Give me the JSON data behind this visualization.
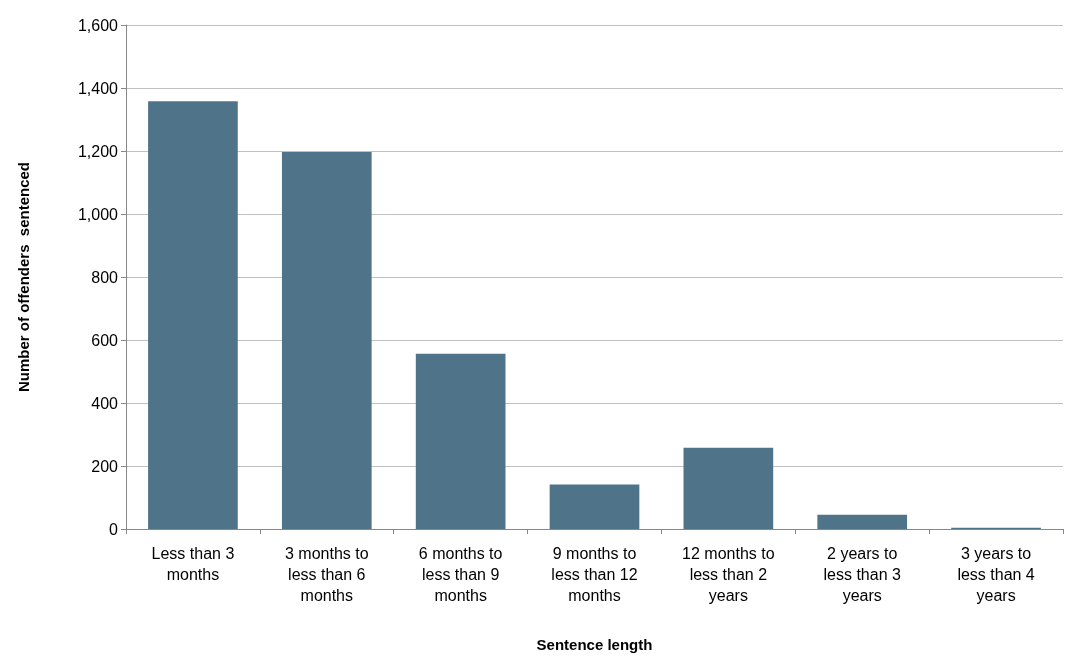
{
  "chart_data": {
    "type": "bar",
    "xlabel": "Sentence length",
    "ylabel": "Number of offenders  sentenced",
    "categories": [
      "Less than 3 months",
      "3 months to less than 6 months",
      "6 months to less than 9 months",
      "9 months to less than 12 months",
      "12 months to less than 2 years",
      "2 years to less than 3 years",
      "3 years to less than 4 years"
    ],
    "values": [
      1358,
      1197,
      556,
      141,
      258,
      45,
      4
    ],
    "color": "#4f7489",
    "ylim": [
      0,
      1600
    ],
    "yticks": [
      0,
      200,
      400,
      600,
      800,
      {
        "value": 1000,
        "label": "1,000"
      },
      {
        "value": 1200,
        "label": "1,200"
      },
      {
        "value": 1400,
        "label": "1,400"
      },
      {
        "value": 1600,
        "label": "1,600"
      }
    ],
    "grid": "y"
  }
}
